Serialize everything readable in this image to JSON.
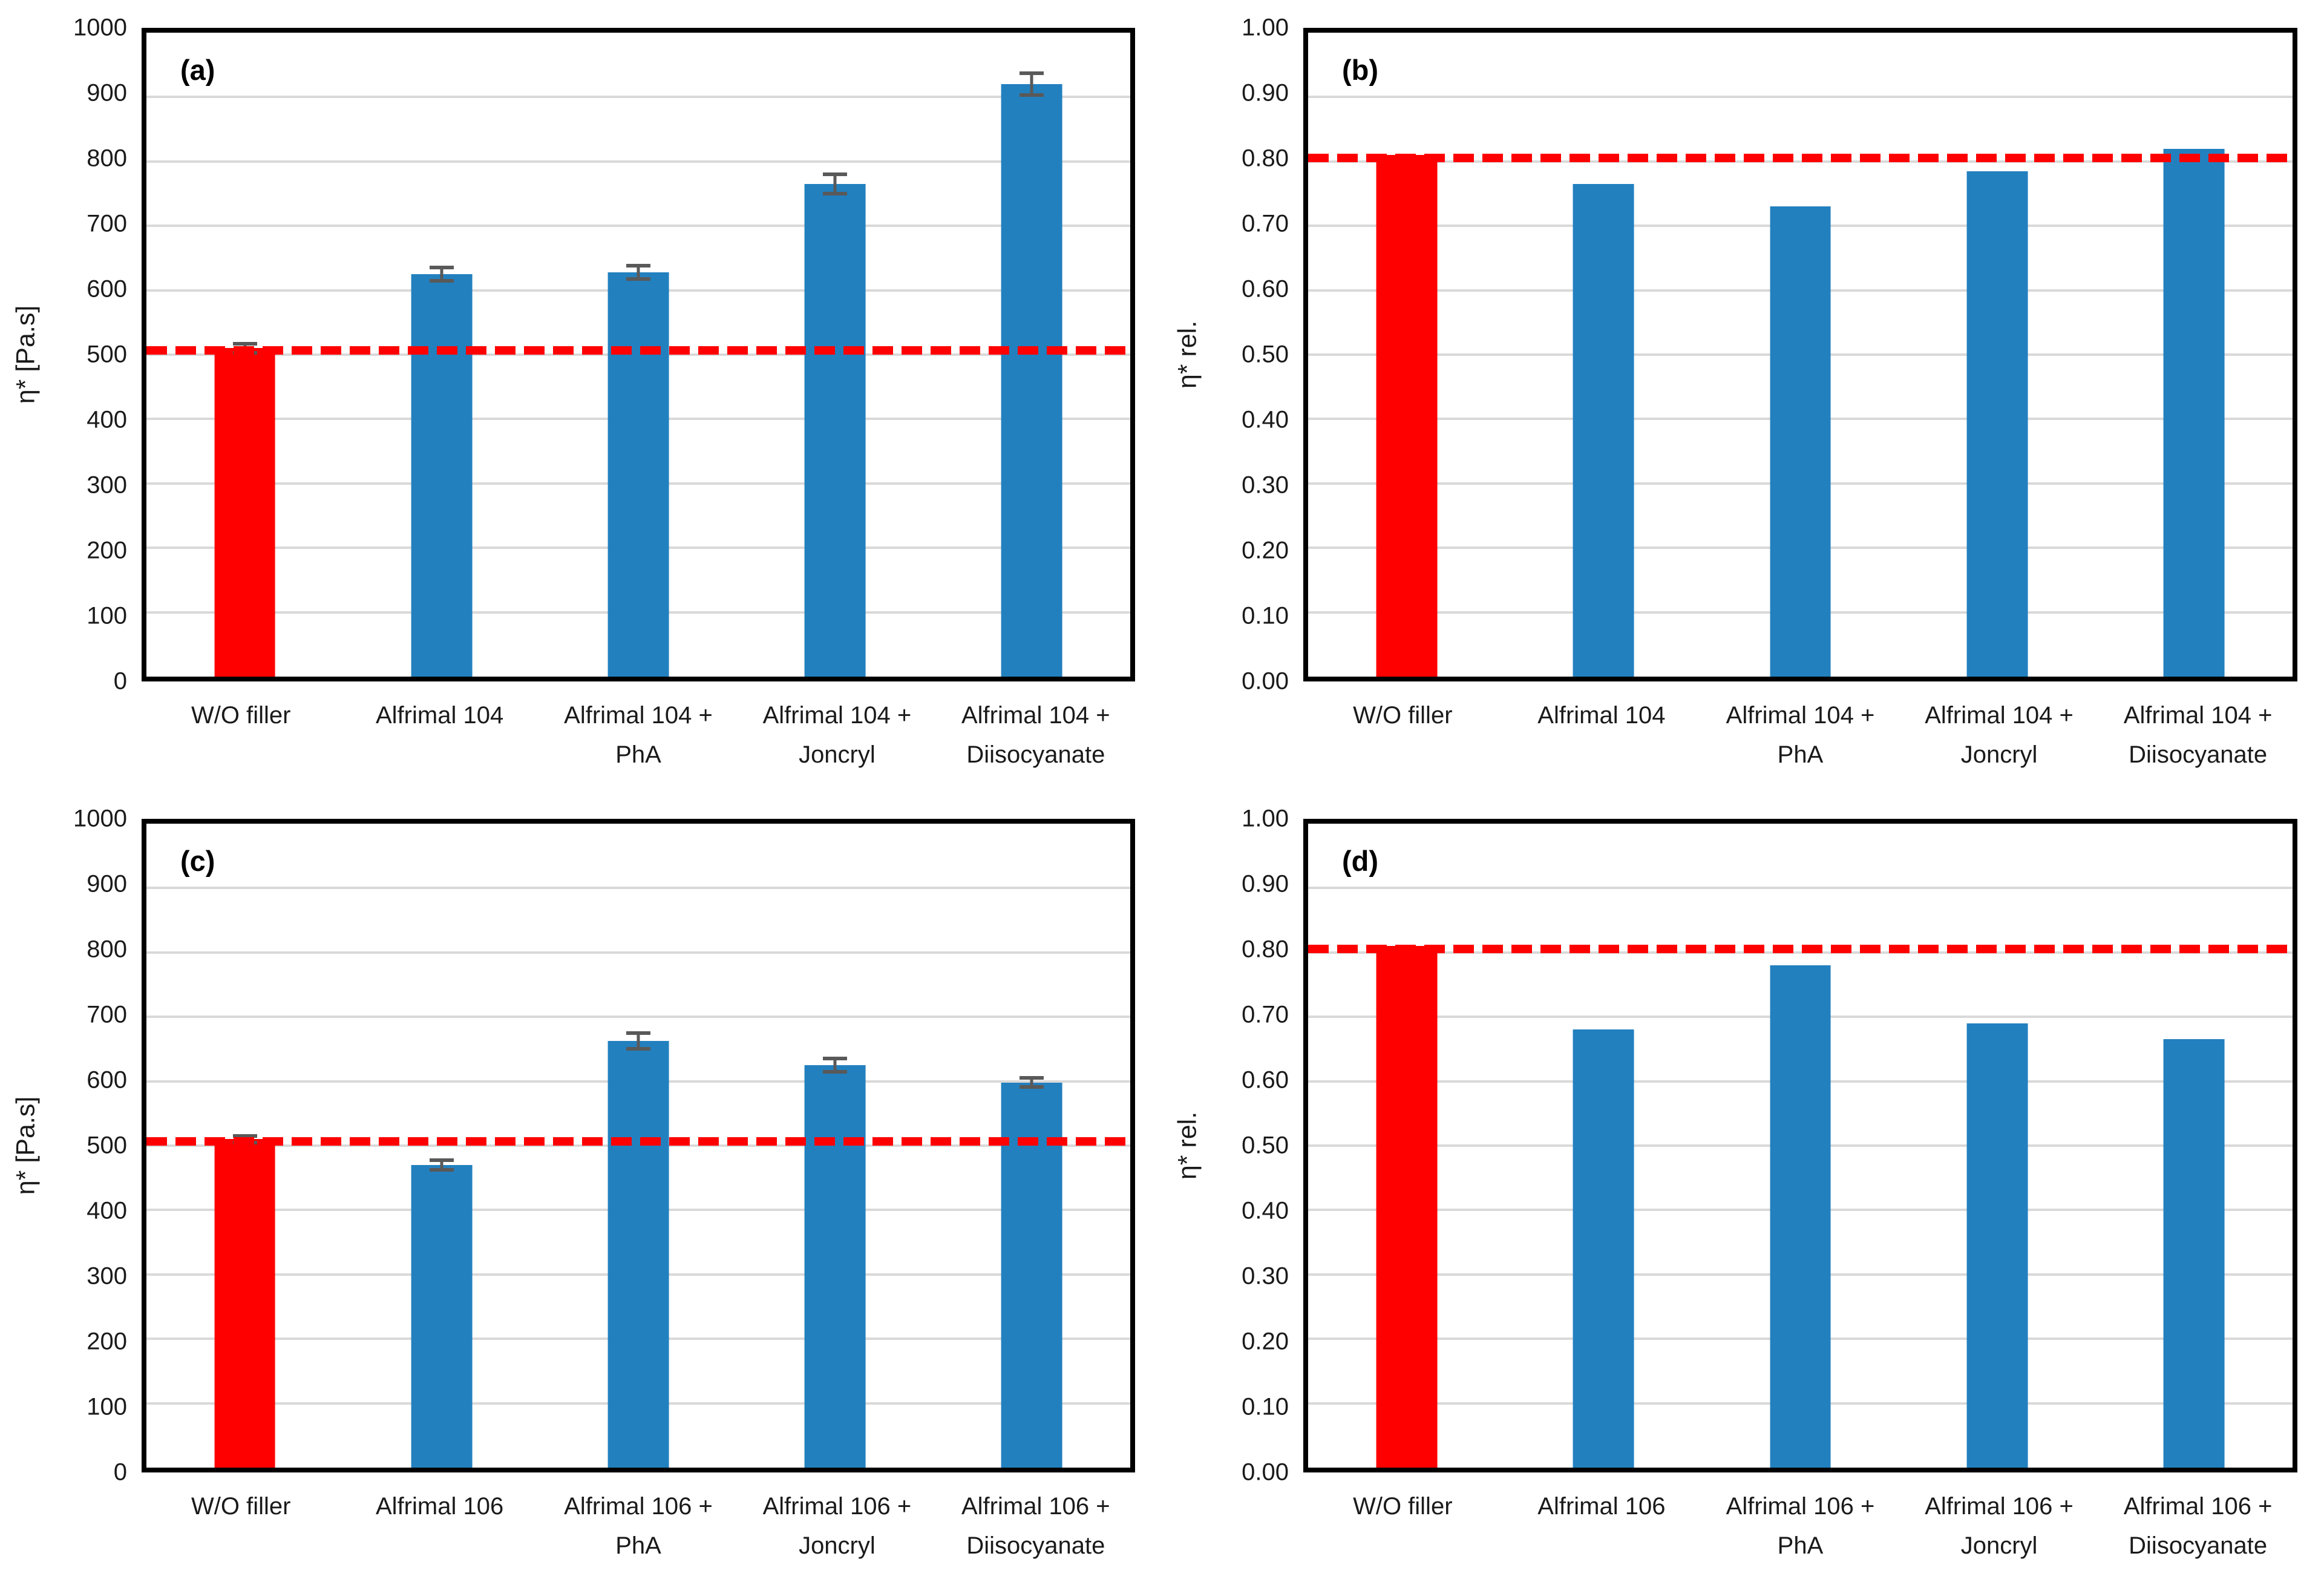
{
  "figure": {
    "description": "Four-panel bar chart figure comparing complex viscosity of filled systems",
    "background": "#ffffff"
  },
  "colors": {
    "baseline_bar": "#FF0000",
    "sample_bar": "#2280BF",
    "reference_line": "#FF0000",
    "error_bar": "#595959",
    "gridline": "#D9D9D9",
    "axis_border": "#000000",
    "text": "#1a1a1a"
  },
  "chart_data": [
    {
      "panel_label": "(a)",
      "type": "bar",
      "ylabel": "η* [Pa.s]",
      "ylim": [
        0,
        1000
      ],
      "yticks": [
        "1000",
        "900",
        "800",
        "700",
        "600",
        "500",
        "400",
        "300",
        "200",
        "100",
        "0"
      ],
      "grid": true,
      "legend": "none",
      "categories": [
        "W/O filler",
        "Alfrimal 104",
        "Alfrimal 104 +\nPhA",
        "Alfrimal 104 +\nJoncryl",
        "Alfrimal 104 +\nDiisocyanate"
      ],
      "values": [
        510,
        625,
        628,
        765,
        920
      ],
      "errors": [
        10,
        13,
        13,
        18,
        20
      ],
      "bar_colors": [
        "#FF0000",
        "#2280BF",
        "#2280BF",
        "#2280BF",
        "#2280BF"
      ],
      "reference_line": 507
    },
    {
      "panel_label": "(b)",
      "type": "bar",
      "ylabel": "η* rel.",
      "ylim": [
        0,
        1
      ],
      "yticks": [
        "1.00",
        "0.90",
        "0.80",
        "0.70",
        "0.60",
        "0.50",
        "0.40",
        "0.30",
        "0.20",
        "0.10",
        "0.00"
      ],
      "grid": true,
      "legend": "none",
      "categories": [
        "W/O filler",
        "Alfrimal 104",
        "Alfrimal 104 +\nPhA",
        "Alfrimal 104 +\nJoncryl",
        "Alfrimal 104 +\nDiisocyanate"
      ],
      "values": [
        0.81,
        0.765,
        0.73,
        0.785,
        0.82
      ],
      "errors": null,
      "bar_colors": [
        "#FF0000",
        "#2280BF",
        "#2280BF",
        "#2280BF",
        "#2280BF"
      ],
      "reference_line": 0.805
    },
    {
      "panel_label": "(c)",
      "type": "bar",
      "ylabel": "η* [Pa.s]",
      "ylim": [
        0,
        1000
      ],
      "yticks": [
        "1000",
        "900",
        "800",
        "700",
        "600",
        "500",
        "400",
        "300",
        "200",
        "100",
        "0"
      ],
      "grid": true,
      "legend": "none",
      "categories": [
        "W/O filler",
        "Alfrimal 106",
        "Alfrimal 106 +\nPhA",
        "Alfrimal 106 +\nJoncryl",
        "Alfrimal 106 +\nDiisocyanate"
      ],
      "values": [
        510,
        470,
        663,
        625,
        598
      ],
      "errors": [
        8,
        10,
        15,
        13,
        10
      ],
      "bar_colors": [
        "#FF0000",
        "#2280BF",
        "#2280BF",
        "#2280BF",
        "#2280BF"
      ],
      "reference_line": 507
    },
    {
      "panel_label": "(d)",
      "type": "bar",
      "ylabel": "η* rel.",
      "ylim": [
        0,
        1
      ],
      "yticks": [
        "1.00",
        "0.90",
        "0.80",
        "0.70",
        "0.60",
        "0.50",
        "0.40",
        "0.30",
        "0.20",
        "0.10",
        "0.00"
      ],
      "grid": true,
      "legend": "none",
      "categories": [
        "W/O filler",
        "Alfrimal 106",
        "Alfrimal 106 +\nPhA",
        "Alfrimal 106 +\nJoncryl",
        "Alfrimal 106 +\nDiisocyanate"
      ],
      "values": [
        0.81,
        0.68,
        0.78,
        0.69,
        0.665
      ],
      "errors": null,
      "bar_colors": [
        "#FF0000",
        "#2280BF",
        "#2280BF",
        "#2280BF",
        "#2280BF"
      ],
      "reference_line": 0.805
    }
  ]
}
